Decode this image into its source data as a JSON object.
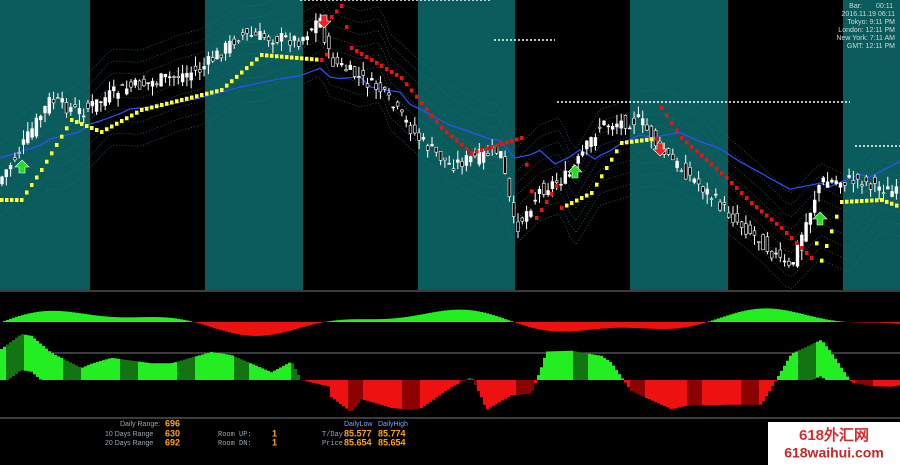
{
  "clock": {
    "bar_label": "Bar:",
    "bar_time": "00:11",
    "date": "2016.11.19 06:11",
    "tokyo": "Tokyo: 9:11 PM",
    "london": "London: 12:11 PM",
    "new_york": "New York: 7:11 AM",
    "gmt": "GMT: 12:11 PM"
  },
  "info": {
    "daily_range_label": "Daily Range:",
    "daily_range": "696",
    "ten_days_label": "10 Days Range",
    "ten_days": "630",
    "twenty_days_label": "20 Days Range",
    "twenty_days": "692",
    "room_up_label": "Room UP:",
    "room_up": "1",
    "room_dn_label": "Room DN:",
    "room_dn": "1",
    "daily_low_label": "DailyLow",
    "daily_high_label": "DailyHigh",
    "tday_label": "T/Day",
    "tday_low": "85.577",
    "tday_high": "85.774",
    "price_label": "Price",
    "price_low": "85.654",
    "price_high": "85.654"
  },
  "watermark": {
    "title": "618外汇网",
    "url": "618waihui.com"
  }
}
